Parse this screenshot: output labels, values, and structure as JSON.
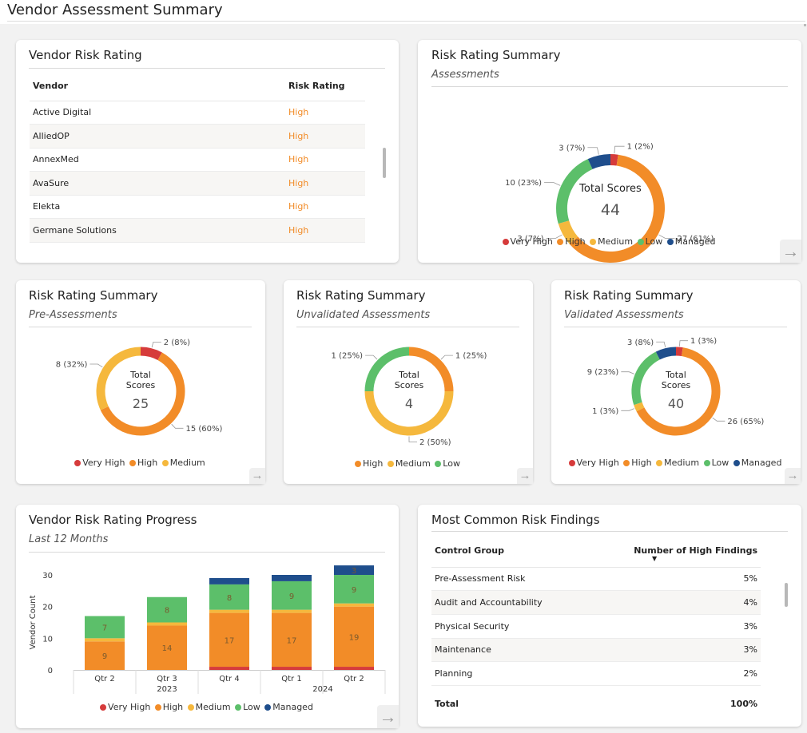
{
  "page": {
    "title": "Vendor Assessment Summary"
  },
  "colors": {
    "very_high": "#d63b3b",
    "high": "#f28c28",
    "medium": "#f5b83d",
    "low": "#5cbf6a",
    "managed": "#1f4e8c"
  },
  "vendor_rating": {
    "title": "Vendor Risk Rating",
    "columns": [
      "Vendor",
      "Risk Rating"
    ],
    "rows": [
      [
        "Active Digital",
        "High"
      ],
      [
        "AlliedOP",
        "High"
      ],
      [
        "AnnexMed",
        "High"
      ],
      [
        "AvaSure",
        "High"
      ],
      [
        "Elekta",
        "High"
      ],
      [
        "Germane Solutions",
        "High"
      ]
    ]
  },
  "summary_assessments": {
    "title": "Risk Rating Summary",
    "subtitle": "Assessments",
    "center_label": "Total Scores",
    "total": "44",
    "slices": [
      {
        "name": "Very High",
        "value": 1,
        "label": "1 (2%)",
        "color": "#d63b3b"
      },
      {
        "name": "High",
        "value": 27,
        "label": "27 (61%)",
        "color": "#f28c28"
      },
      {
        "name": "Medium",
        "value": 3,
        "label": "3 (7%)",
        "color": "#f5b83d"
      },
      {
        "name": "Low",
        "value": 10,
        "label": "10 (23%)",
        "color": "#5cbf6a"
      },
      {
        "name": "Managed",
        "value": 3,
        "label": "3 (7%)",
        "color": "#1f4e8c"
      }
    ],
    "legend": [
      "Very High",
      "High",
      "Medium",
      "Low",
      "Managed"
    ]
  },
  "summary_pre": {
    "title": "Risk Rating Summary",
    "subtitle": "Pre-Assessments",
    "center_label_1": "Total",
    "center_label_2": "Scores",
    "total": "25",
    "slices": [
      {
        "name": "Very High",
        "value": 2,
        "label": "2 (8%)",
        "color": "#d63b3b"
      },
      {
        "name": "High",
        "value": 15,
        "label": "15 (60%)",
        "color": "#f28c28"
      },
      {
        "name": "Medium",
        "value": 8,
        "label": "8 (32%)",
        "color": "#f5b83d"
      }
    ],
    "legend": [
      "Very High",
      "High",
      "Medium"
    ]
  },
  "summary_unvalidated": {
    "title": "Risk Rating Summary",
    "subtitle": "Unvalidated Assessments",
    "center_label_1": "Total",
    "center_label_2": "Scores",
    "total": "4",
    "slices": [
      {
        "name": "High",
        "value": 1,
        "label": "1 (25%)",
        "color": "#f28c28"
      },
      {
        "name": "Medium",
        "value": 2,
        "label": "2 (50%)",
        "color": "#f5b83d"
      },
      {
        "name": "Low",
        "value": 1,
        "label": "1 (25%)",
        "color": "#5cbf6a"
      }
    ],
    "legend": [
      "High",
      "Medium",
      "Low"
    ]
  },
  "summary_validated": {
    "title": "Risk Rating Summary",
    "subtitle": "Validated Assessments",
    "center_label_1": "Total",
    "center_label_2": "Scores",
    "total": "40",
    "slices": [
      {
        "name": "Very High",
        "value": 1,
        "label": "1 (3%)",
        "color": "#d63b3b"
      },
      {
        "name": "High",
        "value": 26,
        "label": "26 (65%)",
        "color": "#f28c28"
      },
      {
        "name": "Medium",
        "value": 1,
        "label": "1 (3%)",
        "color": "#f5b83d"
      },
      {
        "name": "Low",
        "value": 9,
        "label": "9 (23%)",
        "color": "#5cbf6a"
      },
      {
        "name": "Managed",
        "value": 3,
        "label": "3 (8%)",
        "color": "#1f4e8c"
      }
    ],
    "legend": [
      "Very High",
      "High",
      "Medium",
      "Low",
      "Managed"
    ]
  },
  "progress": {
    "title": "Vendor Risk Rating Progress",
    "subtitle": "Last 12 Months",
    "legend": [
      "Very High",
      "High",
      "Medium",
      "Low",
      "Managed"
    ]
  },
  "chart_data": {
    "type": "bar",
    "stacked": true,
    "ylabel": "Vendor Count",
    "ylim": [
      0,
      30
    ],
    "yticks": [
      0,
      10,
      20,
      30
    ],
    "categories": [
      "Qtr 2",
      "Qtr 3",
      "Qtr 4",
      "Qtr 1",
      "Qtr 2"
    ],
    "year_groups": [
      {
        "label": "2023",
        "from": 0,
        "to": 2
      },
      {
        "label": "2024",
        "from": 3,
        "to": 4
      }
    ],
    "series": [
      {
        "name": "Very High",
        "color": "#d63b3b",
        "values": [
          0,
          0,
          1,
          1,
          1
        ]
      },
      {
        "name": "High",
        "color": "#f28c28",
        "values": [
          9,
          14,
          17,
          17,
          19
        ]
      },
      {
        "name": "Medium",
        "color": "#f5b83d",
        "values": [
          1,
          1,
          1,
          1,
          1
        ]
      },
      {
        "name": "Low",
        "color": "#5cbf6a",
        "values": [
          7,
          8,
          8,
          9,
          9
        ]
      },
      {
        "name": "Managed",
        "color": "#1f4e8c",
        "values": [
          0,
          0,
          2,
          2,
          3
        ]
      }
    ],
    "data_labels": [
      [
        "",
        "9",
        "",
        "7",
        ""
      ],
      [
        "",
        "14",
        "",
        "8",
        ""
      ],
      [
        "",
        "17",
        "",
        "8",
        ""
      ],
      [
        "",
        "17",
        "",
        "9",
        ""
      ],
      [
        "",
        "19",
        "",
        "9",
        "3"
      ]
    ],
    "legend": [
      "Very High",
      "High",
      "Medium",
      "Low",
      "Managed"
    ],
    "legend_position": "bottom",
    "grid": false
  },
  "findings": {
    "title": "Most Common Risk Findings",
    "columns": [
      "Control Group",
      "Number of High Findings"
    ],
    "rows": [
      [
        "Pre-Assessment Risk",
        "5%"
      ],
      [
        "Audit and Accountability",
        "4%"
      ],
      [
        "Physical Security",
        "3%"
      ],
      [
        "Maintenance",
        "3%"
      ],
      [
        "Planning",
        "2%"
      ]
    ],
    "total": [
      "Total",
      "100%"
    ]
  }
}
